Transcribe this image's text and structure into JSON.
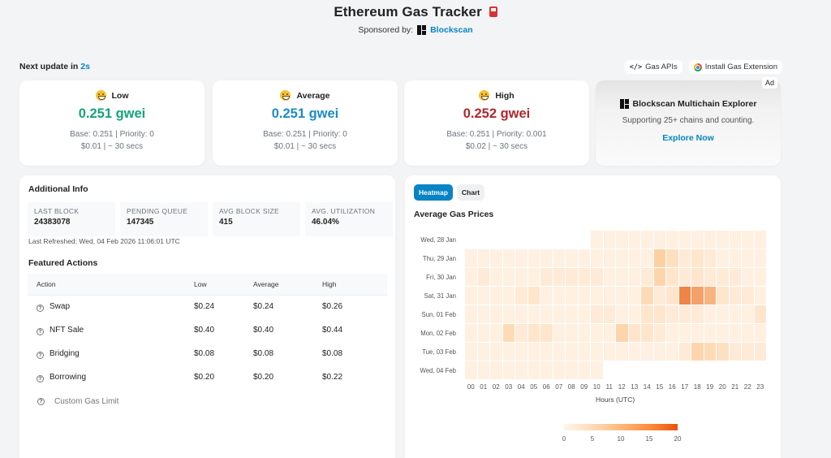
{
  "header": {
    "title": "Ethereum Gas Tracker",
    "title_icon": "fuel-pump-icon",
    "sponsor_label": "Sponsored by:",
    "sponsor_name": "Blockscan"
  },
  "next_update": {
    "label": "Next update in",
    "value": "2s"
  },
  "top_links": [
    {
      "label": "Gas APIs",
      "icon": "code-icon"
    },
    {
      "label": "Install Gas Extension",
      "icon": "chrome-icon"
    }
  ],
  "gas_cards": [
    {
      "label": "Low",
      "value": "0.251 gwei",
      "color": "#13a37c",
      "base_priority": "Base: 0.251 | Priority: 0",
      "cost_time": "$0.01 | ~ 30 secs",
      "emoji": "grimacing-face-icon"
    },
    {
      "label": "Average",
      "value": "0.251 gwei",
      "color": "#1a8bc9",
      "base_priority": "Base: 0.251 | Priority: 0",
      "cost_time": "$0.01 | ~ 30 secs",
      "emoji": "grinning-face-icon"
    },
    {
      "label": "High",
      "value": "0.252 gwei",
      "color": "#b3262b",
      "base_priority": "Base: 0.251 | Priority: 0.001",
      "cost_time": "$0.02 | ~ 30 secs",
      "emoji": "slightly-smiling-face-icon"
    }
  ],
  "ad": {
    "badge": "Ad",
    "title": "Blockscan Multichain Explorer",
    "subtitle": "Supporting 25+ chains and counting.",
    "cta": "Explore Now"
  },
  "additional_info": {
    "title": "Additional Info",
    "stats": [
      {
        "label": "LAST BLOCK",
        "value": "24383078"
      },
      {
        "label": "PENDING QUEUE",
        "value": "147345"
      },
      {
        "label": "AVG BLOCK SIZE",
        "value": "415"
      },
      {
        "label": "AVG. UTILIZATION",
        "value": "46.04%"
      }
    ],
    "last_refreshed": "Last Refreshed: Wed, 04 Feb 2026 11:06:01 UTC"
  },
  "featured_actions": {
    "title": "Featured Actions",
    "columns": [
      "Action",
      "Low",
      "Average",
      "High"
    ],
    "rows": [
      {
        "action": "Swap",
        "low": "$0.24",
        "average": "$0.24",
        "high": "$0.26"
      },
      {
        "action": "NFT Sale",
        "low": "$0.40",
        "average": "$0.40",
        "high": "$0.44"
      },
      {
        "action": "Bridging",
        "low": "$0.08",
        "average": "$0.08",
        "high": "$0.08"
      },
      {
        "action": "Borrowing",
        "low": "$0.20",
        "average": "$0.20",
        "high": "$0.22"
      }
    ],
    "custom_gas_limit_placeholder": "Custom Gas Limit"
  },
  "chart_panel": {
    "tabs": [
      {
        "label": "Heatmap",
        "active": true
      },
      {
        "label": "Chart",
        "active": false
      }
    ],
    "title": "Average Gas Prices"
  },
  "chart_data": {
    "type": "heatmap",
    "title": "Average Gas Prices",
    "xlabel": "Hours (UTC)",
    "ylabel": "",
    "x": [
      "00",
      "01",
      "02",
      "03",
      "04",
      "05",
      "06",
      "07",
      "08",
      "09",
      "10",
      "11",
      "12",
      "13",
      "14",
      "15",
      "16",
      "17",
      "18",
      "19",
      "20",
      "21",
      "22",
      "23"
    ],
    "y": [
      "Wed, 28 Jan",
      "Thu, 29 Jan",
      "Fri, 30 Jan",
      "Sat, 31 Jan",
      "Sun, 01 Feb",
      "Mon, 02 Feb",
      "Tue, 03 Feb",
      "Wed, 04 Feb"
    ],
    "values": [
      [
        null,
        null,
        null,
        null,
        null,
        null,
        null,
        null,
        null,
        null,
        1,
        1,
        1,
        1,
        1,
        1,
        1,
        1,
        1,
        1,
        1,
        1,
        1,
        1
      ],
      [
        1,
        1,
        1,
        1,
        1,
        1,
        1,
        1,
        1,
        1,
        1,
        1,
        1,
        1,
        1,
        7,
        4,
        2,
        3,
        2,
        1,
        1,
        1,
        1
      ],
      [
        1,
        2,
        1,
        1,
        1,
        1,
        2,
        2,
        2,
        2,
        2,
        1,
        1,
        1,
        2,
        6,
        3,
        2,
        3,
        2,
        2,
        2,
        1,
        1
      ],
      [
        1,
        1,
        1,
        1,
        2,
        3,
        1,
        1,
        1,
        1,
        1,
        1,
        1,
        1,
        5,
        2,
        3,
        15,
        12,
        10,
        3,
        2,
        2,
        1
      ],
      [
        1,
        1,
        1,
        1,
        1,
        1,
        1,
        1,
        1,
        1,
        2,
        2,
        1,
        1,
        3,
        3,
        2,
        2,
        2,
        1,
        1,
        1,
        1,
        3
      ],
      [
        1,
        1,
        1,
        5,
        2,
        3,
        3,
        1,
        1,
        1,
        1,
        1,
        6,
        3,
        3,
        2,
        1,
        1,
        1,
        1,
        1,
        1,
        1,
        1
      ],
      [
        1,
        1,
        1,
        1,
        1,
        1,
        1,
        1,
        1,
        1,
        1,
        1,
        1,
        1,
        1,
        1,
        1,
        2,
        6,
        5,
        4,
        2,
        2,
        2
      ],
      [
        1,
        1,
        1,
        1,
        1,
        1,
        1,
        1,
        1,
        1,
        1,
        null,
        null,
        null,
        null,
        null,
        null,
        null,
        null,
        null,
        null,
        null,
        null,
        null
      ]
    ],
    "colorscale": {
      "min": 0,
      "max": 20,
      "ticks": [
        0,
        5,
        10,
        15,
        20
      ],
      "low_color": "#fff5eb",
      "high_color": "#e6550d"
    },
    "grid": false,
    "legend_position": "bottom"
  }
}
